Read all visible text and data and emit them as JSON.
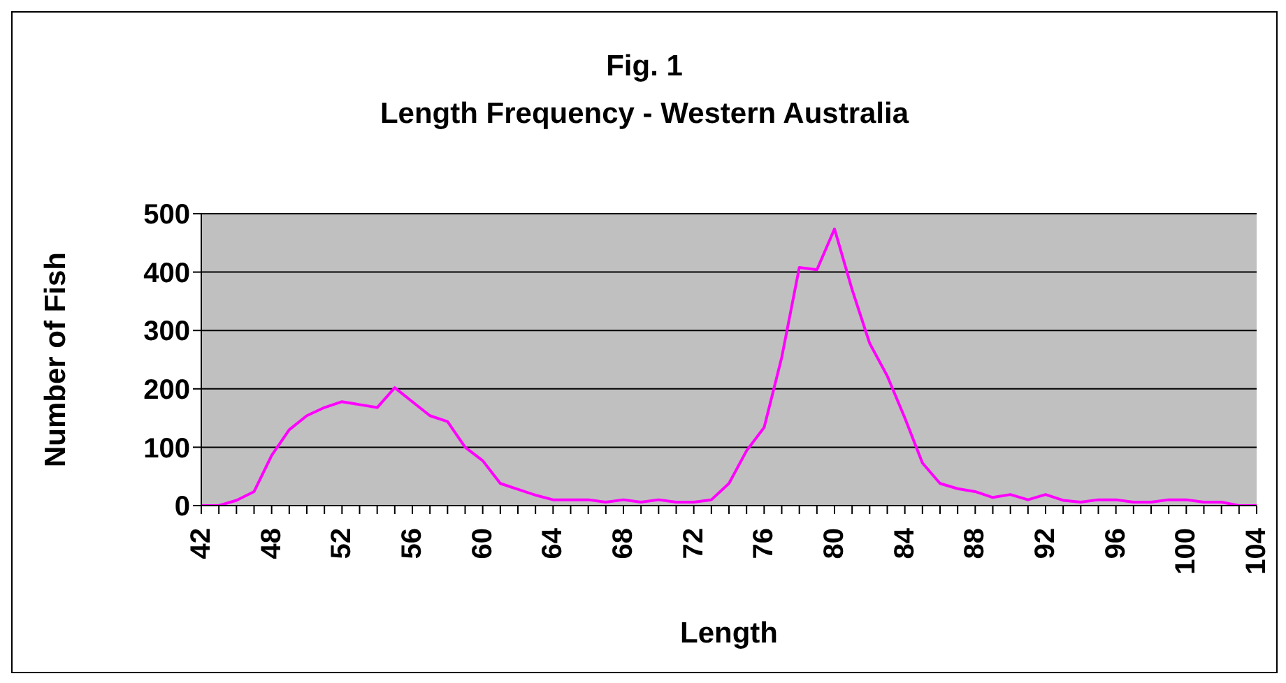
{
  "chart_data": {
    "type": "line",
    "title": "Fig. 1",
    "subtitle": "Length Frequency - Western Australia",
    "xlabel": "Length",
    "ylabel": "Number of Fish",
    "categories": [
      "42",
      null,
      null,
      null,
      "48",
      null,
      null,
      null,
      "52",
      null,
      null,
      null,
      "56",
      null,
      null,
      null,
      "60",
      null,
      null,
      null,
      "64",
      null,
      null,
      null,
      "68",
      null,
      null,
      null,
      "72",
      null,
      null,
      null,
      "76",
      null,
      null,
      null,
      "80",
      null,
      null,
      null,
      "84",
      null,
      null,
      null,
      "88",
      null,
      null,
      null,
      "92",
      null,
      null,
      null,
      "96",
      null,
      null,
      null,
      "100",
      null,
      null,
      null,
      "104"
    ],
    "series": [
      {
        "color": "#ff00ff",
        "values": [
          0,
          0,
          9,
          24,
          86,
          130,
          154,
          168,
          178,
          173,
          168,
          202,
          178,
          154,
          144,
          100,
          77,
          38,
          28,
          18,
          10,
          10,
          10,
          6,
          10,
          6,
          10,
          6,
          6,
          10,
          38,
          94,
          134,
          254,
          408,
          404,
          474,
          370,
          278,
          222,
          150,
          73,
          38,
          29,
          24,
          14,
          19,
          10,
          19,
          9,
          6,
          10,
          10,
          6,
          6,
          10,
          10,
          6,
          6,
          0,
          0
        ]
      }
    ],
    "ylim": [
      0,
      500
    ],
    "yticks": [
      0,
      100,
      200,
      300,
      400,
      500
    ],
    "grid": "y",
    "marker": "none",
    "line_style": "solid"
  }
}
